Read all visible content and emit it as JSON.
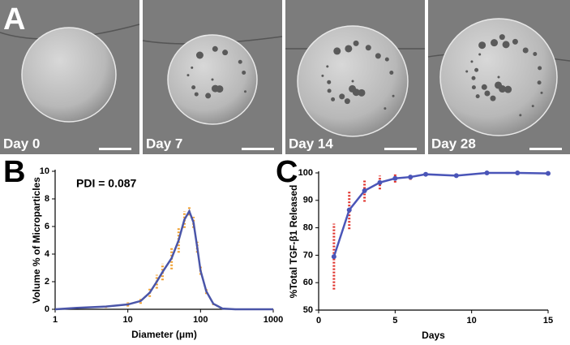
{
  "panels": [
    {
      "letter": "A",
      "images": [
        "Day 0",
        "Day 7",
        "Day 14",
        "Day 28"
      ]
    },
    {
      "letter": "B"
    },
    {
      "letter": "C"
    }
  ],
  "chart_data": [
    {
      "type": "line",
      "ylabel": "Volume % of Microparticles",
      "xlabel": "Diameter (μm)",
      "annotation": "PDI = 0.087",
      "xscale": "log",
      "xlim": [
        1,
        1000
      ],
      "xticks": [
        1,
        10,
        100,
        1000
      ],
      "ylim": [
        0,
        10
      ],
      "yticks": [
        0,
        2,
        4,
        6,
        8,
        10
      ],
      "error_color": "#f0a030",
      "x": [
        1,
        2,
        5,
        10,
        15,
        20,
        25,
        30,
        40,
        50,
        60,
        70,
        80,
        90,
        100,
        120,
        150,
        200,
        300,
        1000
      ],
      "series": [
        {
          "color": "#4a55a8",
          "values": [
            0,
            0.1,
            0.2,
            0.35,
            0.6,
            1.2,
            2.0,
            2.7,
            3.7,
            5.0,
            6.5,
            7.1,
            6.3,
            4.5,
            2.8,
            1.3,
            0.4,
            0.05,
            0,
            0
          ],
          "errors": [
            0,
            0.05,
            0.1,
            0.15,
            0.2,
            0.3,
            0.5,
            0.6,
            0.8,
            0.9,
            0.6,
            0.3,
            0.4,
            0.4,
            0.3,
            0.2,
            0.1,
            0.05,
            0,
            0
          ]
        }
      ]
    },
    {
      "type": "line",
      "ylabel": "%Total TGF-β1 Released",
      "xlabel": "Days",
      "xlim": [
        0,
        15
      ],
      "xticks": [
        0,
        5,
        10,
        15
      ],
      "ylim": [
        50,
        100
      ],
      "yticks": [
        50,
        60,
        70,
        80,
        90,
        100
      ],
      "error_color": "#e0302a",
      "x": [
        1,
        2,
        3,
        4,
        5,
        6,
        7,
        9,
        11,
        13,
        15
      ],
      "series": [
        {
          "color": "#4a55b8",
          "values": [
            69.5,
            86.5,
            93.5,
            96.5,
            98,
            98.5,
            99.5,
            99,
            100,
            100,
            99.8
          ],
          "errors": [
            12,
            7,
            4,
            2.5,
            1.5,
            1,
            0.5,
            0.5,
            0.3,
            0.3,
            0.3
          ]
        }
      ]
    }
  ]
}
